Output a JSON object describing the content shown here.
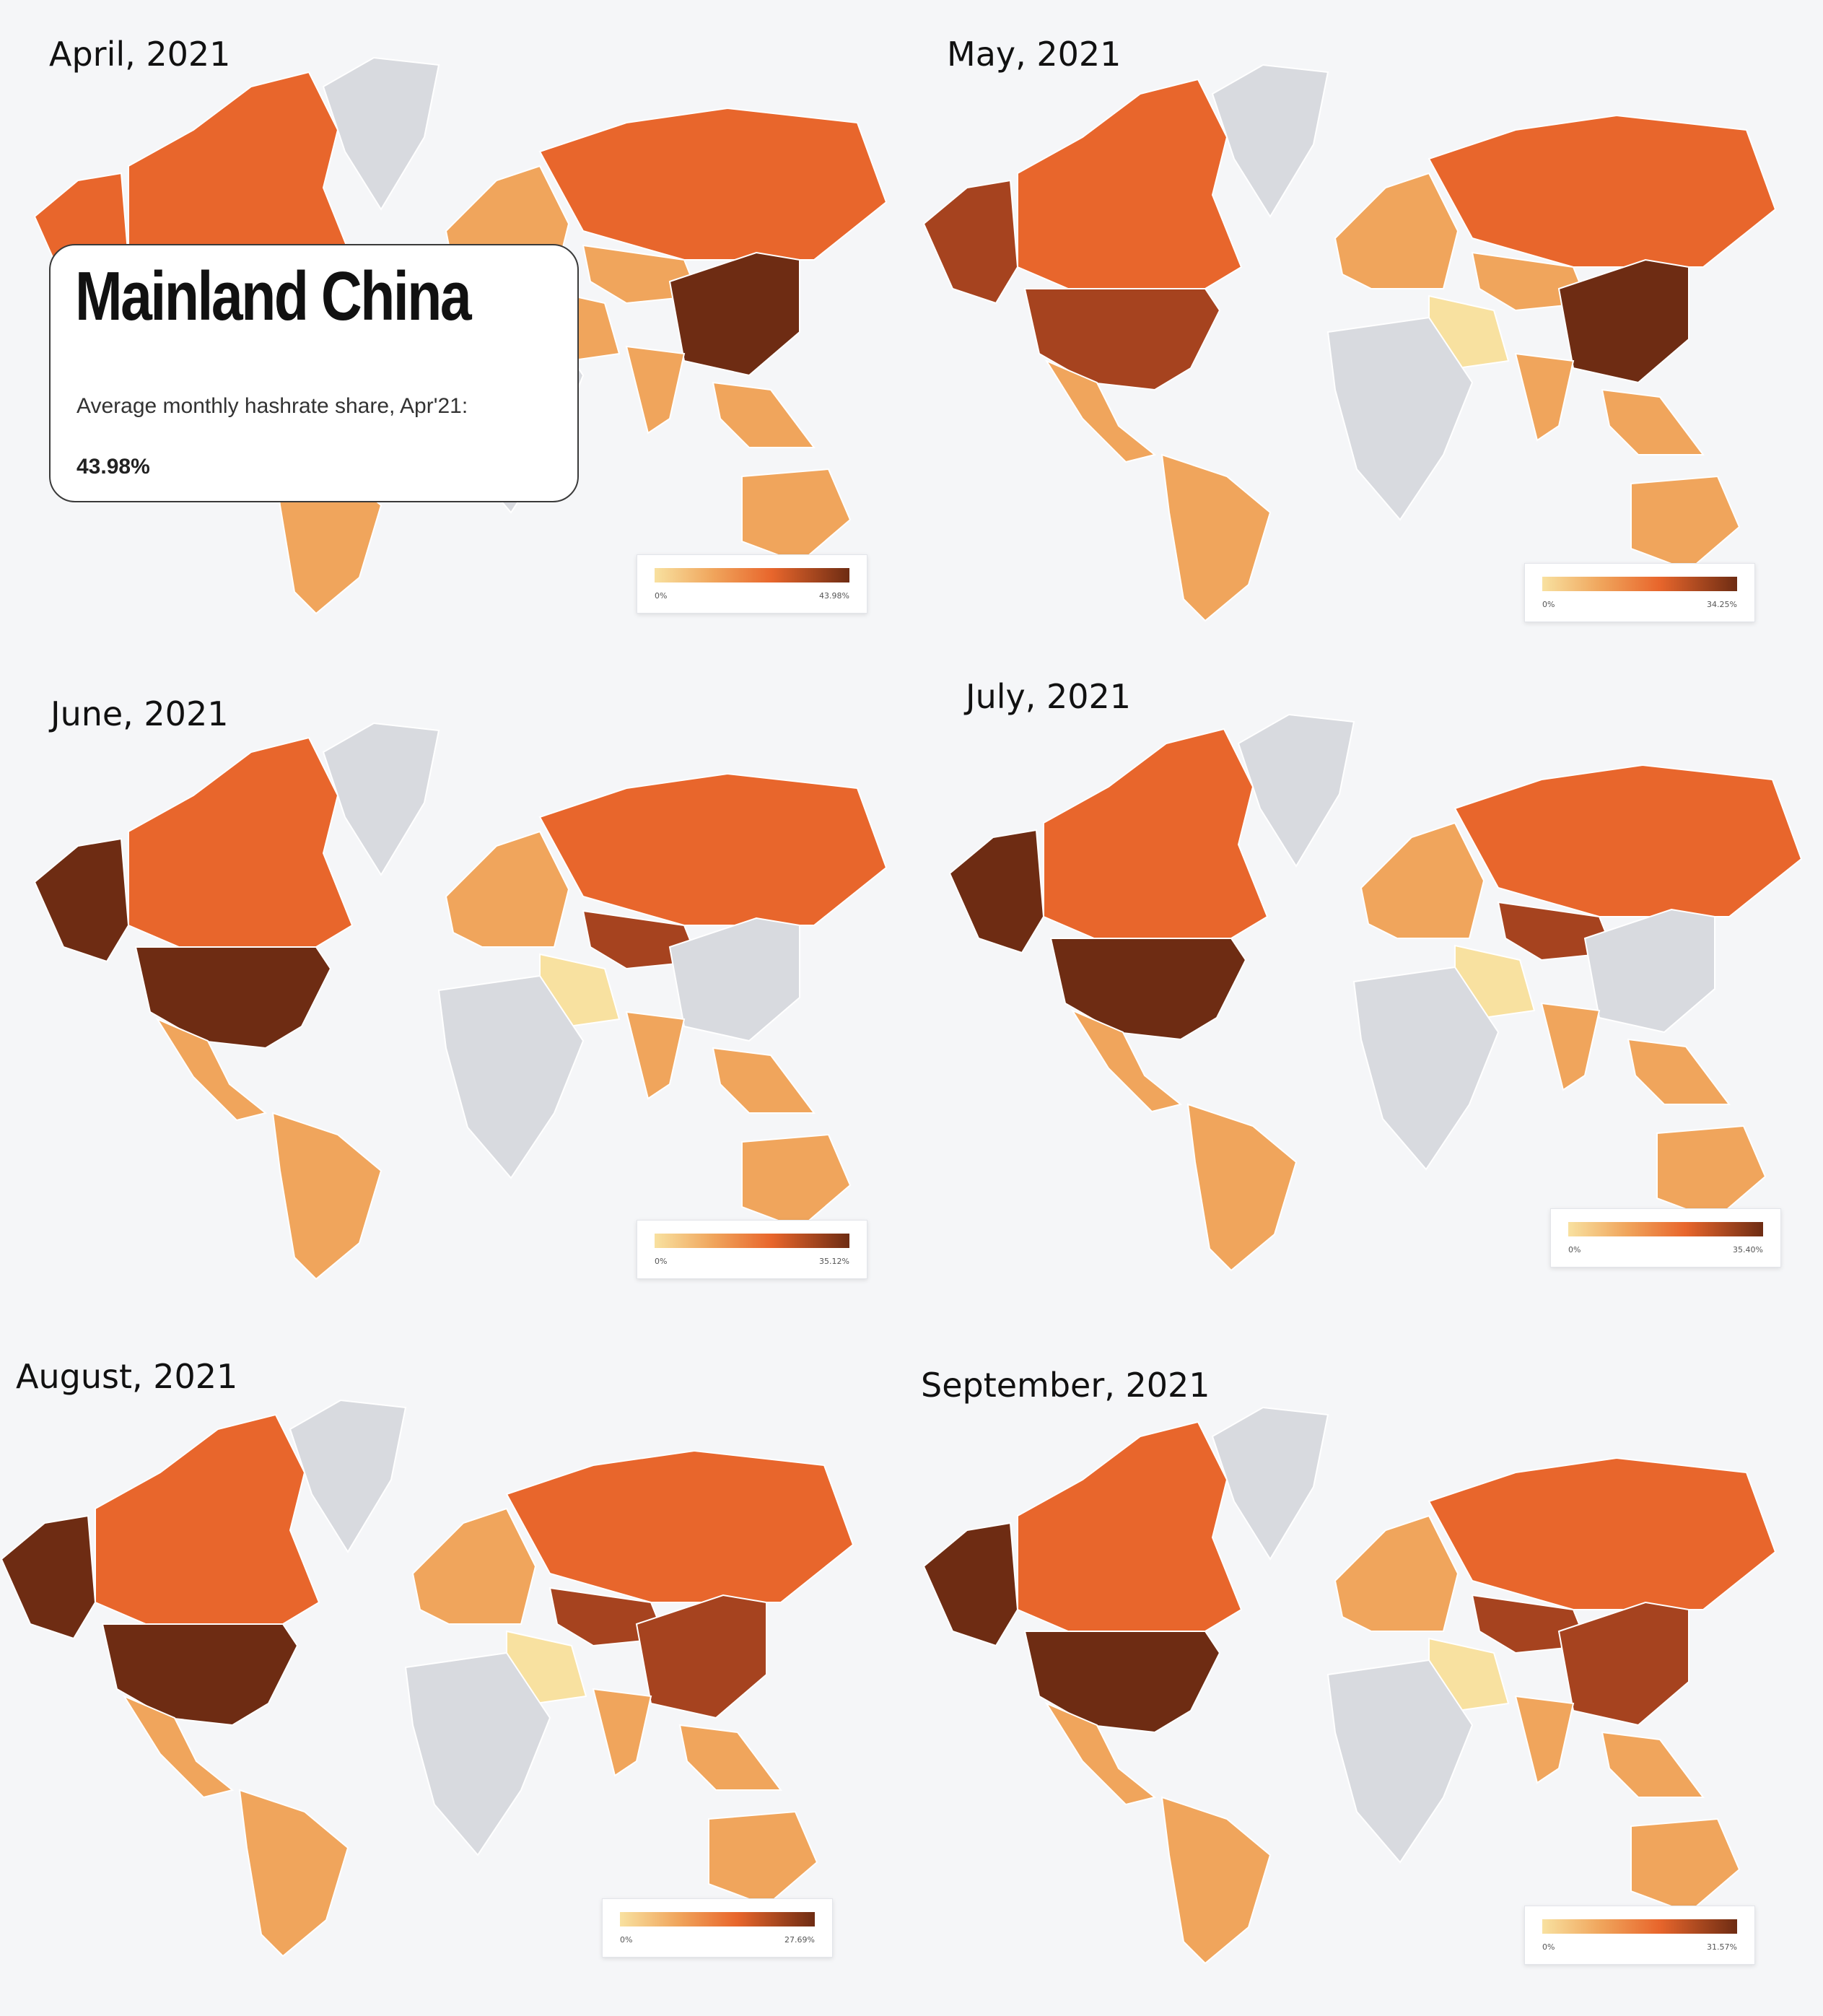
{
  "colors": {
    "no_data": "#d8dadf",
    "scale": [
      "#f8e1a0",
      "#f0a55c",
      "#e8662c",
      "#a6431f",
      "#6e2c13"
    ]
  },
  "maps": [
    {
      "title": "April, 2021",
      "legend_min": "0%",
      "legend_max": "43.98%",
      "fills": {
        "canada": "#e8662c",
        "usa": "#e8662c",
        "alaska": "#e8662c",
        "greenland": "#d8dadf",
        "mexico": "#f0a55c",
        "south_america": "#f0a55c",
        "europe": "#f0a55c",
        "russia": "#e8662c",
        "central_asia": "#f0a55c",
        "china": "#6e2c13",
        "india": "#f0a55c",
        "middle_east": "#f0a55c",
        "africa": "#d8dadf",
        "se_asia": "#f0a55c",
        "australia": "#f0a55c"
      }
    },
    {
      "title": "May, 2021",
      "legend_min": "0%",
      "legend_max": "34.25%",
      "fills": {
        "canada": "#e8662c",
        "usa": "#a6431f",
        "alaska": "#a6431f",
        "greenland": "#d8dadf",
        "mexico": "#f0a55c",
        "south_america": "#f0a55c",
        "europe": "#f0a55c",
        "russia": "#e8662c",
        "central_asia": "#f0a55c",
        "china": "#6e2c13",
        "india": "#f0a55c",
        "middle_east": "#f8e1a0",
        "africa": "#d8dadf",
        "se_asia": "#f0a55c",
        "australia": "#f0a55c"
      }
    },
    {
      "title": "June, 2021",
      "legend_min": "0%",
      "legend_max": "35.12%",
      "fills": {
        "canada": "#e8662c",
        "usa": "#6e2c13",
        "alaska": "#6e2c13",
        "greenland": "#d8dadf",
        "mexico": "#f0a55c",
        "south_america": "#f0a55c",
        "europe": "#f0a55c",
        "russia": "#e8662c",
        "central_asia": "#a6431f",
        "china": "#d8dadf",
        "india": "#f0a55c",
        "middle_east": "#f8e1a0",
        "africa": "#d8dadf",
        "se_asia": "#f0a55c",
        "australia": "#f0a55c"
      }
    },
    {
      "title": "July, 2021",
      "legend_min": "0%",
      "legend_max": "35.40%",
      "fills": {
        "canada": "#e8662c",
        "usa": "#6e2c13",
        "alaska": "#6e2c13",
        "greenland": "#d8dadf",
        "mexico": "#f0a55c",
        "south_america": "#f0a55c",
        "europe": "#f0a55c",
        "russia": "#e8662c",
        "central_asia": "#a6431f",
        "china": "#d8dadf",
        "india": "#f0a55c",
        "middle_east": "#f8e1a0",
        "africa": "#d8dadf",
        "se_asia": "#f0a55c",
        "australia": "#f0a55c"
      }
    },
    {
      "title": "August, 2021",
      "legend_min": "0%",
      "legend_max": "27.69%",
      "fills": {
        "canada": "#e8662c",
        "usa": "#6e2c13",
        "alaska": "#6e2c13",
        "greenland": "#d8dadf",
        "mexico": "#f0a55c",
        "south_america": "#f0a55c",
        "europe": "#f0a55c",
        "russia": "#e8662c",
        "central_asia": "#a6431f",
        "china": "#a6431f",
        "india": "#f0a55c",
        "middle_east": "#f8e1a0",
        "africa": "#d8dadf",
        "se_asia": "#f0a55c",
        "australia": "#f0a55c"
      }
    },
    {
      "title": "September, 2021",
      "legend_min": "0%",
      "legend_max": "31.57%",
      "fills": {
        "canada": "#e8662c",
        "usa": "#6e2c13",
        "alaska": "#6e2c13",
        "greenland": "#d8dadf",
        "mexico": "#f0a55c",
        "south_america": "#f0a55c",
        "europe": "#f0a55c",
        "russia": "#e8662c",
        "central_asia": "#a6431f",
        "china": "#a6431f",
        "india": "#f0a55c",
        "middle_east": "#f8e1a0",
        "africa": "#d8dadf",
        "se_asia": "#f0a55c",
        "australia": "#f0a55c"
      }
    }
  ],
  "tooltip": {
    "country": "Mainland China",
    "subtitle": "Average monthly hashrate share, Apr'21:",
    "value": "43.98%"
  }
}
